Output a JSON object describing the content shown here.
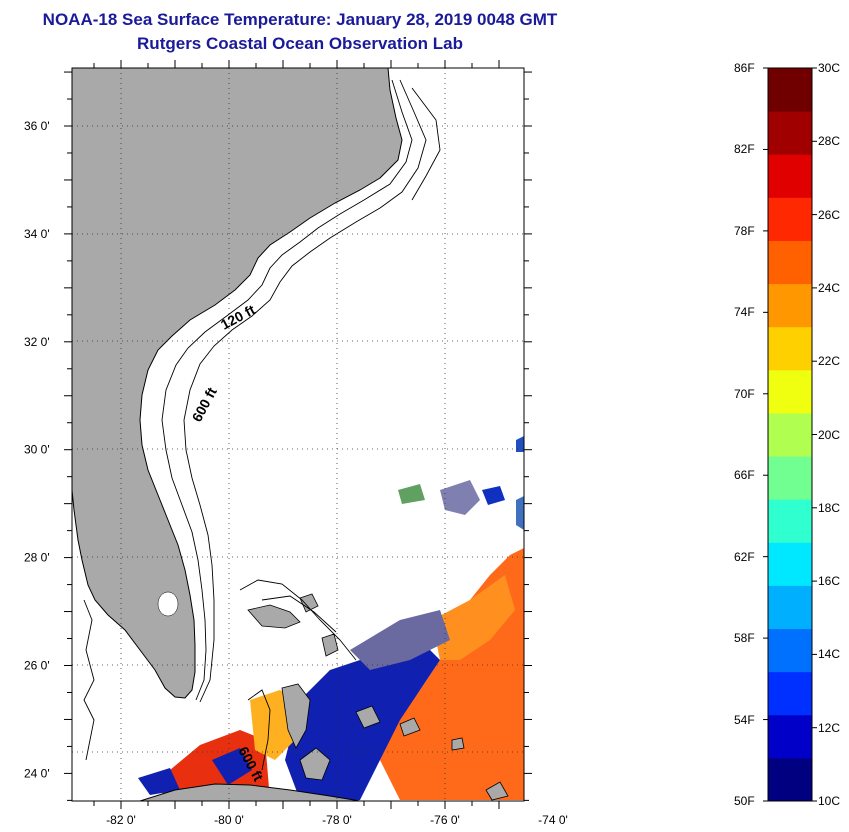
{
  "title_line1": "NOAA-18 Sea Surface Temperature:  January 28, 2019 0048 GMT",
  "title_line2": "Rutgers Coastal Ocean Observation Lab",
  "lat_labels": [
    {
      "lat": 36,
      "text": "36 0'"
    },
    {
      "lat": 34,
      "text": "34 0'"
    },
    {
      "lat": 32,
      "text": "32 0'"
    },
    {
      "lat": 30,
      "text": "30 0'"
    },
    {
      "lat": 28,
      "text": "28 0'"
    },
    {
      "lat": 26,
      "text": "26 0'"
    },
    {
      "lat": 24,
      "text": "24 0'"
    }
  ],
  "lon_labels": [
    {
      "lon": -82,
      "text": "-82 0'"
    },
    {
      "lon": -80,
      "text": "-80 0'"
    },
    {
      "lon": -78,
      "text": "-78 0'"
    },
    {
      "lon": -76,
      "text": "-76 0'"
    },
    {
      "lon": -74,
      "text": "-74 0'"
    }
  ],
  "contour_labels": {
    "shelf": "120 ft",
    "slope": "600 ft",
    "bahamas": "600 ft"
  },
  "colorbar": {
    "fahrenheit": [
      "86F",
      "82F",
      "78F",
      "74F",
      "70F",
      "66F",
      "62F",
      "58F",
      "54F",
      "50F"
    ],
    "celsius": [
      "30C",
      "28C",
      "26C",
      "24C",
      "22C",
      "20C",
      "18C",
      "16C",
      "14C",
      "12C",
      "10C"
    ],
    "colors": [
      "#000080",
      "#0000c8",
      "#0030ff",
      "#0070ff",
      "#00b0ff",
      "#00e8ff",
      "#30ffd0",
      "#70ff90",
      "#b0ff50",
      "#f0ff10",
      "#ffd000",
      "#ff9800",
      "#ff6000",
      "#ff2800",
      "#e00000",
      "#a00000",
      "#700000"
    ]
  },
  "colors": {
    "land": "#a9a9a9",
    "title": "#1a1a9a",
    "sst_warm": "#ff6a1a",
    "sst_cool": "#1020b0"
  }
}
